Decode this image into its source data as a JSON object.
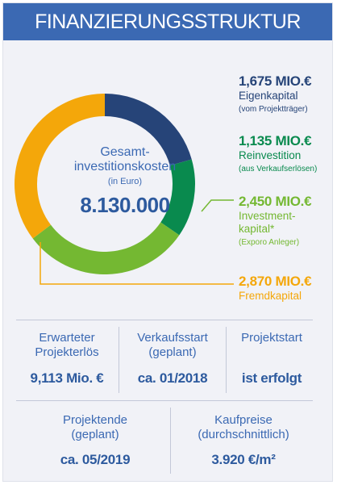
{
  "header": {
    "title": "FINANZIERUNGSSTRUKTUR"
  },
  "center": {
    "label_line1": "Gesamt-",
    "label_line2": "investitionskosten",
    "unit": "(in Euro)",
    "value": "8.130.000"
  },
  "legend": [
    {
      "value": "1,675 MIO.€",
      "label_line1": "Eigenkapital",
      "label_line2": "",
      "sub": "(vom Projektträger)"
    },
    {
      "value": "1,135 MIO.€",
      "label_line1": "Reinvestition",
      "label_line2": "",
      "sub": "(aus Verkaufserlösen)"
    },
    {
      "value": "2,450 MIO.€",
      "label_line1": "Investment-",
      "label_line2": "kapital*",
      "sub": "(Exporo Anleger)"
    },
    {
      "value": "2,870 MIO.€",
      "label_line1": "Fremdkapital",
      "label_line2": "",
      "sub": ""
    }
  ],
  "chart_data": {
    "type": "pie",
    "style": "donut",
    "total": 8.13,
    "categories": [
      "Eigenkapital",
      "Reinvestition",
      "Investmentkapital",
      "Fremdkapital"
    ],
    "values": [
      1.675,
      1.135,
      2.45,
      2.87
    ],
    "colors": [
      "#264478",
      "#098a4e",
      "#74b832",
      "#f4a70a"
    ]
  },
  "stats_row1": [
    {
      "label_line1": "Erwarteter",
      "label_line2": "Projekterlös",
      "value": "9,113 Mio. €"
    },
    {
      "label_line1": "Verkaufsstart",
      "label_line2": "(geplant)",
      "value": "ca. 01/2018"
    },
    {
      "label_line1": "Projektstart",
      "label_line2": "",
      "value": "ist erfolgt"
    }
  ],
  "stats_row2": [
    {
      "label_line1": "Projektende",
      "label_line2": "(geplant)",
      "value": "ca. 05/2019"
    },
    {
      "label_line1": "Kaufpreise",
      "label_line2": "(durchschnittlich)",
      "value": "3.920 €/m²"
    }
  ]
}
